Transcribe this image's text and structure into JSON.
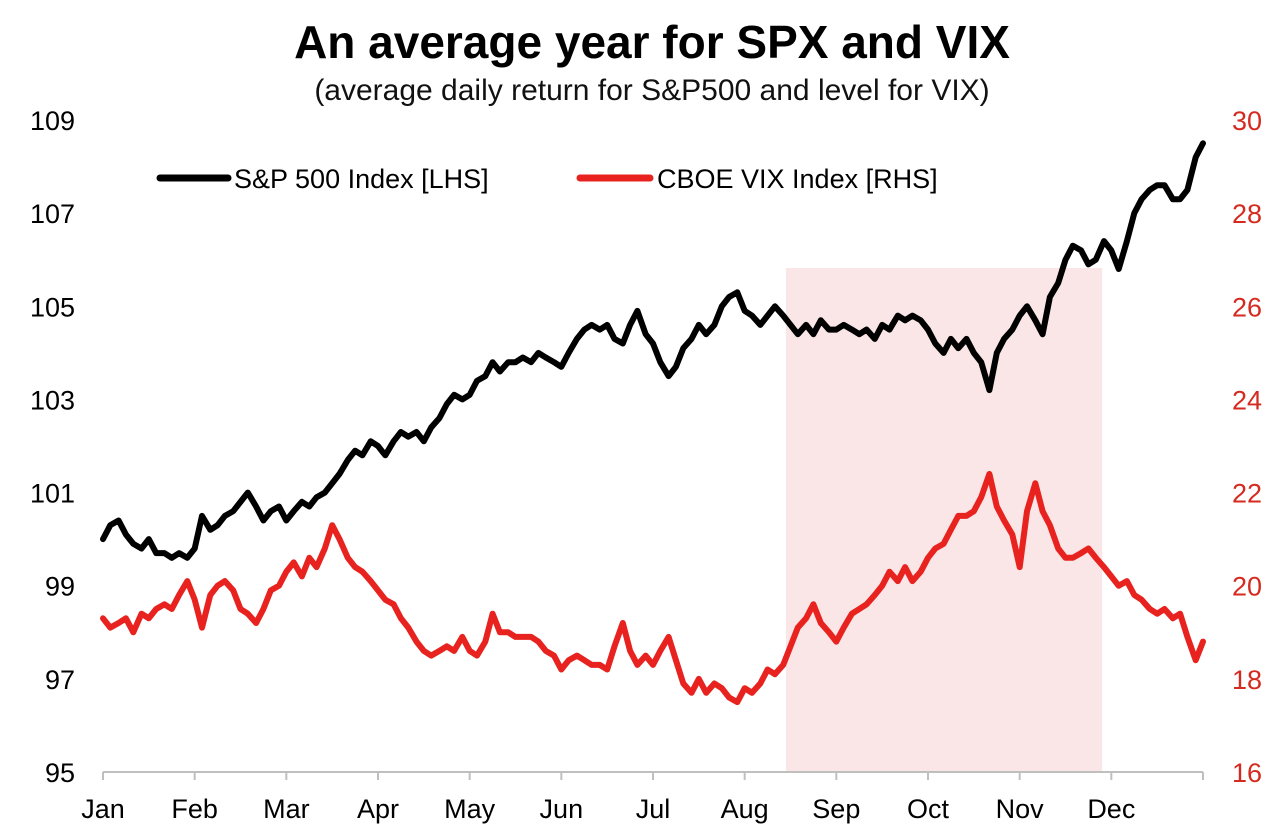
{
  "chart_data": {
    "type": "line",
    "title": "An average year for SPX and VIX",
    "subtitle": "(average daily return for S&P500 and level for VIX)",
    "colors": {
      "spx": "#000000",
      "vix": "#e8231f",
      "highlight": "#fae6e6",
      "right_axis_text": "#d42a20"
    },
    "x_axis": {
      "tick_labels": [
        "Jan",
        "Feb",
        "Mar",
        "Apr",
        "May",
        "Jun",
        "Jul",
        "Aug",
        "Sep",
        "Oct",
        "Nov",
        "Dec"
      ]
    },
    "y_left": {
      "min": 95,
      "max": 109,
      "ticks": [
        "109",
        "107",
        "105",
        "103",
        "101",
        "99",
        "97",
        "95"
      ]
    },
    "y_right": {
      "min": 16,
      "max": 30,
      "ticks": [
        "30",
        "28",
        "26",
        "24",
        "22",
        "20",
        "18",
        "16"
      ]
    },
    "highlight_region": {
      "from_month": 7.45,
      "to_month": 10.9
    },
    "legend_position": "top-left",
    "series": [
      {
        "name": "S&P 500 Index [LHS]",
        "axis": "left",
        "points": [
          [
            0.0,
            100.0
          ],
          [
            0.08,
            100.3
          ],
          [
            0.17,
            100.4
          ],
          [
            0.25,
            100.1
          ],
          [
            0.33,
            99.9
          ],
          [
            0.42,
            99.8
          ],
          [
            0.5,
            100.0
          ],
          [
            0.58,
            99.7
          ],
          [
            0.67,
            99.7
          ],
          [
            0.75,
            99.6
          ],
          [
            0.83,
            99.7
          ],
          [
            0.92,
            99.6
          ],
          [
            1.0,
            99.8
          ],
          [
            1.08,
            100.5
          ],
          [
            1.17,
            100.2
          ],
          [
            1.25,
            100.3
          ],
          [
            1.33,
            100.5
          ],
          [
            1.42,
            100.6
          ],
          [
            1.5,
            100.8
          ],
          [
            1.58,
            101.0
          ],
          [
            1.67,
            100.7
          ],
          [
            1.75,
            100.4
          ],
          [
            1.83,
            100.6
          ],
          [
            1.92,
            100.7
          ],
          [
            2.0,
            100.4
          ],
          [
            2.08,
            100.6
          ],
          [
            2.17,
            100.8
          ],
          [
            2.25,
            100.7
          ],
          [
            2.33,
            100.9
          ],
          [
            2.42,
            101.0
          ],
          [
            2.5,
            101.2
          ],
          [
            2.58,
            101.4
          ],
          [
            2.67,
            101.7
          ],
          [
            2.75,
            101.9
          ],
          [
            2.83,
            101.8
          ],
          [
            2.92,
            102.1
          ],
          [
            3.0,
            102.0
          ],
          [
            3.08,
            101.8
          ],
          [
            3.17,
            102.1
          ],
          [
            3.25,
            102.3
          ],
          [
            3.33,
            102.2
          ],
          [
            3.42,
            102.3
          ],
          [
            3.5,
            102.1
          ],
          [
            3.58,
            102.4
          ],
          [
            3.67,
            102.6
          ],
          [
            3.75,
            102.9
          ],
          [
            3.83,
            103.1
          ],
          [
            3.92,
            103.0
          ],
          [
            4.0,
            103.1
          ],
          [
            4.08,
            103.4
          ],
          [
            4.17,
            103.5
          ],
          [
            4.25,
            103.8
          ],
          [
            4.33,
            103.6
          ],
          [
            4.42,
            103.8
          ],
          [
            4.5,
            103.8
          ],
          [
            4.58,
            103.9
          ],
          [
            4.67,
            103.8
          ],
          [
            4.75,
            104.0
          ],
          [
            4.83,
            103.9
          ],
          [
            4.92,
            103.8
          ],
          [
            5.0,
            103.7
          ],
          [
            5.08,
            104.0
          ],
          [
            5.17,
            104.3
          ],
          [
            5.25,
            104.5
          ],
          [
            5.33,
            104.6
          ],
          [
            5.42,
            104.5
          ],
          [
            5.5,
            104.6
          ],
          [
            5.58,
            104.3
          ],
          [
            5.67,
            104.2
          ],
          [
            5.75,
            104.6
          ],
          [
            5.83,
            104.9
          ],
          [
            5.92,
            104.4
          ],
          [
            6.0,
            104.2
          ],
          [
            6.08,
            103.8
          ],
          [
            6.17,
            103.5
          ],
          [
            6.25,
            103.7
          ],
          [
            6.33,
            104.1
          ],
          [
            6.42,
            104.3
          ],
          [
            6.5,
            104.6
          ],
          [
            6.58,
            104.4
          ],
          [
            6.67,
            104.6
          ],
          [
            6.75,
            105.0
          ],
          [
            6.83,
            105.2
          ],
          [
            6.92,
            105.3
          ],
          [
            7.0,
            104.9
          ],
          [
            7.08,
            104.8
          ],
          [
            7.17,
            104.6
          ],
          [
            7.25,
            104.8
          ],
          [
            7.33,
            105.0
          ],
          [
            7.42,
            104.8
          ],
          [
            7.5,
            104.6
          ],
          [
            7.58,
            104.4
          ],
          [
            7.67,
            104.6
          ],
          [
            7.75,
            104.4
          ],
          [
            7.83,
            104.7
          ],
          [
            7.92,
            104.5
          ],
          [
            8.0,
            104.5
          ],
          [
            8.08,
            104.6
          ],
          [
            8.17,
            104.5
          ],
          [
            8.25,
            104.4
          ],
          [
            8.33,
            104.5
          ],
          [
            8.42,
            104.3
          ],
          [
            8.5,
            104.6
          ],
          [
            8.58,
            104.5
          ],
          [
            8.67,
            104.8
          ],
          [
            8.75,
            104.7
          ],
          [
            8.83,
            104.8
          ],
          [
            8.92,
            104.7
          ],
          [
            9.0,
            104.5
          ],
          [
            9.08,
            104.2
          ],
          [
            9.17,
            104.0
          ],
          [
            9.25,
            104.3
          ],
          [
            9.33,
            104.1
          ],
          [
            9.42,
            104.3
          ],
          [
            9.5,
            104.0
          ],
          [
            9.58,
            103.8
          ],
          [
            9.67,
            103.2
          ],
          [
            9.75,
            104.0
          ],
          [
            9.83,
            104.3
          ],
          [
            9.92,
            104.5
          ],
          [
            10.0,
            104.8
          ],
          [
            10.08,
            105.0
          ],
          [
            10.17,
            104.7
          ],
          [
            10.25,
            104.4
          ],
          [
            10.33,
            105.2
          ],
          [
            10.42,
            105.5
          ],
          [
            10.5,
            106.0
          ],
          [
            10.58,
            106.3
          ],
          [
            10.67,
            106.2
          ],
          [
            10.75,
            105.9
          ],
          [
            10.83,
            106.0
          ],
          [
            10.92,
            106.4
          ],
          [
            11.0,
            106.2
          ],
          [
            11.08,
            105.8
          ],
          [
            11.17,
            106.4
          ],
          [
            11.25,
            107.0
          ],
          [
            11.33,
            107.3
          ],
          [
            11.42,
            107.5
          ],
          [
            11.5,
            107.6
          ],
          [
            11.58,
            107.6
          ],
          [
            11.67,
            107.3
          ],
          [
            11.75,
            107.3
          ],
          [
            11.83,
            107.5
          ],
          [
            11.92,
            108.2
          ],
          [
            12.0,
            108.5
          ]
        ]
      },
      {
        "name": "CBOE VIX Index [RHS]",
        "axis": "right",
        "points": [
          [
            0.0,
            19.3
          ],
          [
            0.08,
            19.1
          ],
          [
            0.17,
            19.2
          ],
          [
            0.25,
            19.3
          ],
          [
            0.33,
            19.0
          ],
          [
            0.42,
            19.4
          ],
          [
            0.5,
            19.3
          ],
          [
            0.58,
            19.5
          ],
          [
            0.67,
            19.6
          ],
          [
            0.75,
            19.5
          ],
          [
            0.83,
            19.8
          ],
          [
            0.92,
            20.1
          ],
          [
            1.0,
            19.7
          ],
          [
            1.08,
            19.1
          ],
          [
            1.17,
            19.8
          ],
          [
            1.25,
            20.0
          ],
          [
            1.33,
            20.1
          ],
          [
            1.42,
            19.9
          ],
          [
            1.5,
            19.5
          ],
          [
            1.58,
            19.4
          ],
          [
            1.67,
            19.2
          ],
          [
            1.75,
            19.5
          ],
          [
            1.83,
            19.9
          ],
          [
            1.92,
            20.0
          ],
          [
            2.0,
            20.3
          ],
          [
            2.08,
            20.5
          ],
          [
            2.17,
            20.2
          ],
          [
            2.25,
            20.6
          ],
          [
            2.33,
            20.4
          ],
          [
            2.42,
            20.8
          ],
          [
            2.5,
            21.3
          ],
          [
            2.58,
            21.0
          ],
          [
            2.67,
            20.6
          ],
          [
            2.75,
            20.4
          ],
          [
            2.83,
            20.3
          ],
          [
            2.92,
            20.1
          ],
          [
            3.0,
            19.9
          ],
          [
            3.08,
            19.7
          ],
          [
            3.17,
            19.6
          ],
          [
            3.25,
            19.3
          ],
          [
            3.33,
            19.1
          ],
          [
            3.42,
            18.8
          ],
          [
            3.5,
            18.6
          ],
          [
            3.58,
            18.5
          ],
          [
            3.67,
            18.6
          ],
          [
            3.75,
            18.7
          ],
          [
            3.83,
            18.6
          ],
          [
            3.92,
            18.9
          ],
          [
            4.0,
            18.6
          ],
          [
            4.08,
            18.5
          ],
          [
            4.17,
            18.8
          ],
          [
            4.25,
            19.4
          ],
          [
            4.33,
            19.0
          ],
          [
            4.42,
            19.0
          ],
          [
            4.5,
            18.9
          ],
          [
            4.58,
            18.9
          ],
          [
            4.67,
            18.9
          ],
          [
            4.75,
            18.8
          ],
          [
            4.83,
            18.6
          ],
          [
            4.92,
            18.5
          ],
          [
            5.0,
            18.2
          ],
          [
            5.08,
            18.4
          ],
          [
            5.17,
            18.5
          ],
          [
            5.25,
            18.4
          ],
          [
            5.33,
            18.3
          ],
          [
            5.42,
            18.3
          ],
          [
            5.5,
            18.2
          ],
          [
            5.58,
            18.7
          ],
          [
            5.67,
            19.2
          ],
          [
            5.75,
            18.6
          ],
          [
            5.83,
            18.3
          ],
          [
            5.92,
            18.5
          ],
          [
            6.0,
            18.3
          ],
          [
            6.08,
            18.6
          ],
          [
            6.17,
            18.9
          ],
          [
            6.25,
            18.4
          ],
          [
            6.33,
            17.9
          ],
          [
            6.42,
            17.7
          ],
          [
            6.5,
            18.0
          ],
          [
            6.58,
            17.7
          ],
          [
            6.67,
            17.9
          ],
          [
            6.75,
            17.8
          ],
          [
            6.83,
            17.6
          ],
          [
            6.92,
            17.5
          ],
          [
            7.0,
            17.8
          ],
          [
            7.08,
            17.7
          ],
          [
            7.17,
            17.9
          ],
          [
            7.25,
            18.2
          ],
          [
            7.33,
            18.1
          ],
          [
            7.42,
            18.3
          ],
          [
            7.5,
            18.7
          ],
          [
            7.58,
            19.1
          ],
          [
            7.67,
            19.3
          ],
          [
            7.75,
            19.6
          ],
          [
            7.83,
            19.2
          ],
          [
            7.92,
            19.0
          ],
          [
            8.0,
            18.8
          ],
          [
            8.08,
            19.1
          ],
          [
            8.17,
            19.4
          ],
          [
            8.25,
            19.5
          ],
          [
            8.33,
            19.6
          ],
          [
            8.42,
            19.8
          ],
          [
            8.5,
            20.0
          ],
          [
            8.58,
            20.3
          ],
          [
            8.67,
            20.1
          ],
          [
            8.75,
            20.4
          ],
          [
            8.83,
            20.1
          ],
          [
            8.92,
            20.3
          ],
          [
            9.0,
            20.6
          ],
          [
            9.08,
            20.8
          ],
          [
            9.17,
            20.9
          ],
          [
            9.25,
            21.2
          ],
          [
            9.33,
            21.5
          ],
          [
            9.42,
            21.5
          ],
          [
            9.5,
            21.6
          ],
          [
            9.58,
            21.9
          ],
          [
            9.67,
            22.4
          ],
          [
            9.75,
            21.7
          ],
          [
            9.83,
            21.4
          ],
          [
            9.92,
            21.1
          ],
          [
            10.0,
            20.4
          ],
          [
            10.08,
            21.6
          ],
          [
            10.17,
            22.2
          ],
          [
            10.25,
            21.6
          ],
          [
            10.33,
            21.3
          ],
          [
            10.42,
            20.8
          ],
          [
            10.5,
            20.6
          ],
          [
            10.58,
            20.6
          ],
          [
            10.67,
            20.7
          ],
          [
            10.75,
            20.8
          ],
          [
            10.83,
            20.6
          ],
          [
            10.92,
            20.4
          ],
          [
            11.0,
            20.2
          ],
          [
            11.08,
            20.0
          ],
          [
            11.17,
            20.1
          ],
          [
            11.25,
            19.8
          ],
          [
            11.33,
            19.7
          ],
          [
            11.42,
            19.5
          ],
          [
            11.5,
            19.4
          ],
          [
            11.58,
            19.5
          ],
          [
            11.67,
            19.3
          ],
          [
            11.75,
            19.4
          ],
          [
            11.83,
            18.9
          ],
          [
            11.92,
            18.4
          ],
          [
            12.0,
            18.8
          ]
        ]
      }
    ]
  }
}
